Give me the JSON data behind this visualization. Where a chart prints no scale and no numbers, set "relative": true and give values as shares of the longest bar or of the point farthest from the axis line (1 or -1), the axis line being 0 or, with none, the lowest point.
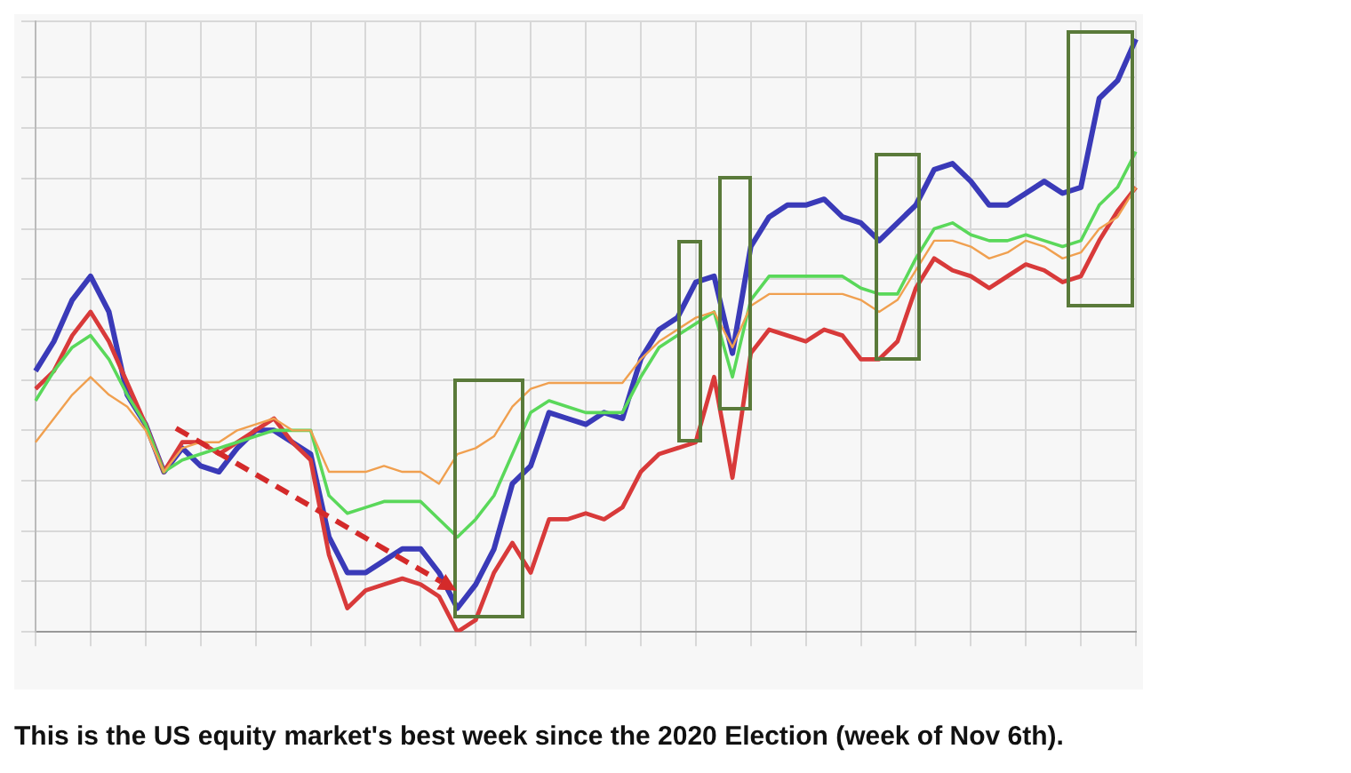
{
  "chart_data": {
    "type": "line",
    "title": "This is the US equity market's best week since the 2020 Election (week of Nov 6th).",
    "relative": true,
    "grid": true,
    "legend": false,
    "marker": "none",
    "line_style": "solid",
    "categories": [
      null,
      null,
      null,
      null,
      null,
      null,
      null,
      null,
      null,
      null,
      null,
      null,
      null,
      null,
      null,
      null,
      null,
      null,
      null,
      null,
      null,
      null,
      null,
      null,
      null,
      null,
      null,
      null,
      null,
      null,
      null,
      null,
      null,
      null,
      null,
      null,
      null,
      null,
      null,
      null,
      null,
      null,
      null,
      null,
      null,
      null,
      null,
      null,
      null,
      null,
      null,
      null,
      null,
      null,
      null,
      null,
      null,
      null,
      null,
      null,
      null
    ],
    "series": [
      {
        "color": "#f0a050",
        "values": [
          0.32,
          0.36,
          0.4,
          0.43,
          0.4,
          0.38,
          0.34,
          0.27,
          0.31,
          0.32,
          0.32,
          0.34,
          0.35,
          0.36,
          0.34,
          0.34,
          0.27,
          0.27,
          0.27,
          0.28,
          0.27,
          0.27,
          0.25,
          0.3,
          0.31,
          0.33,
          0.38,
          0.41,
          0.42,
          0.42,
          0.42,
          0.42,
          0.42,
          0.46,
          0.49,
          0.51,
          0.53,
          0.54,
          0.48,
          0.55,
          0.57,
          0.57,
          0.57,
          0.57,
          0.57,
          0.56,
          0.54,
          0.56,
          0.61,
          0.66,
          0.66,
          0.65,
          0.63,
          0.64,
          0.66,
          0.65,
          0.63,
          0.64,
          0.68,
          0.7,
          0.75
        ]
      },
      {
        "color": "#5ad85a",
        "values": [
          0.39,
          0.44,
          0.48,
          0.5,
          0.46,
          0.4,
          0.35,
          0.27,
          0.29,
          0.3,
          0.31,
          0.32,
          0.33,
          0.34,
          0.34,
          0.34,
          0.23,
          0.2,
          0.21,
          0.22,
          0.22,
          0.22,
          0.19,
          0.16,
          0.19,
          0.23,
          0.3,
          0.37,
          0.39,
          0.38,
          0.37,
          0.37,
          0.37,
          0.43,
          0.48,
          0.5,
          0.52,
          0.54,
          0.43,
          0.56,
          0.6,
          0.6,
          0.6,
          0.6,
          0.6,
          0.58,
          0.57,
          0.57,
          0.63,
          0.68,
          0.69,
          0.67,
          0.66,
          0.66,
          0.67,
          0.66,
          0.65,
          0.66,
          0.72,
          0.75,
          0.81
        ]
      },
      {
        "color": "#d83a3a",
        "values": [
          0.41,
          0.44,
          0.5,
          0.54,
          0.49,
          0.42,
          0.35,
          0.27,
          0.32,
          0.32,
          0.3,
          0.32,
          0.34,
          0.36,
          0.32,
          0.29,
          0.13,
          0.04,
          0.07,
          0.08,
          0.09,
          0.08,
          0.06,
          0,
          0.02,
          0.1,
          0.15,
          0.1,
          0.19,
          0.19,
          0.2,
          0.19,
          0.21,
          0.27,
          0.3,
          0.31,
          0.32,
          0.43,
          0.26,
          0.47,
          0.51,
          0.5,
          0.49,
          0.51,
          0.5,
          0.46,
          0.46,
          0.49,
          0.58,
          0.63,
          0.61,
          0.6,
          0.58,
          0.6,
          0.62,
          0.61,
          0.59,
          0.6,
          0.66,
          0.71,
          0.75
        ]
      },
      {
        "color": "#3a3ab8",
        "values": [
          0.44,
          0.49,
          0.56,
          0.6,
          0.54,
          0.4,
          0.35,
          0.27,
          0.31,
          0.28,
          0.27,
          0.31,
          0.34,
          0.34,
          0.32,
          0.3,
          0.16,
          0.1,
          0.1,
          0.12,
          0.14,
          0.14,
          0.1,
          0.04,
          0.08,
          0.14,
          0.25,
          0.28,
          0.37,
          0.36,
          0.35,
          0.37,
          0.36,
          0.46,
          0.51,
          0.53,
          0.59,
          0.6,
          0.47,
          0.65,
          0.7,
          0.72,
          0.72,
          0.73,
          0.7,
          0.69,
          0.66,
          0.69,
          0.72,
          0.78,
          0.79,
          0.76,
          0.72,
          0.72,
          0.74,
          0.76,
          0.74,
          0.75,
          0.9,
          0.93,
          1
        ]
      }
    ]
  }
}
